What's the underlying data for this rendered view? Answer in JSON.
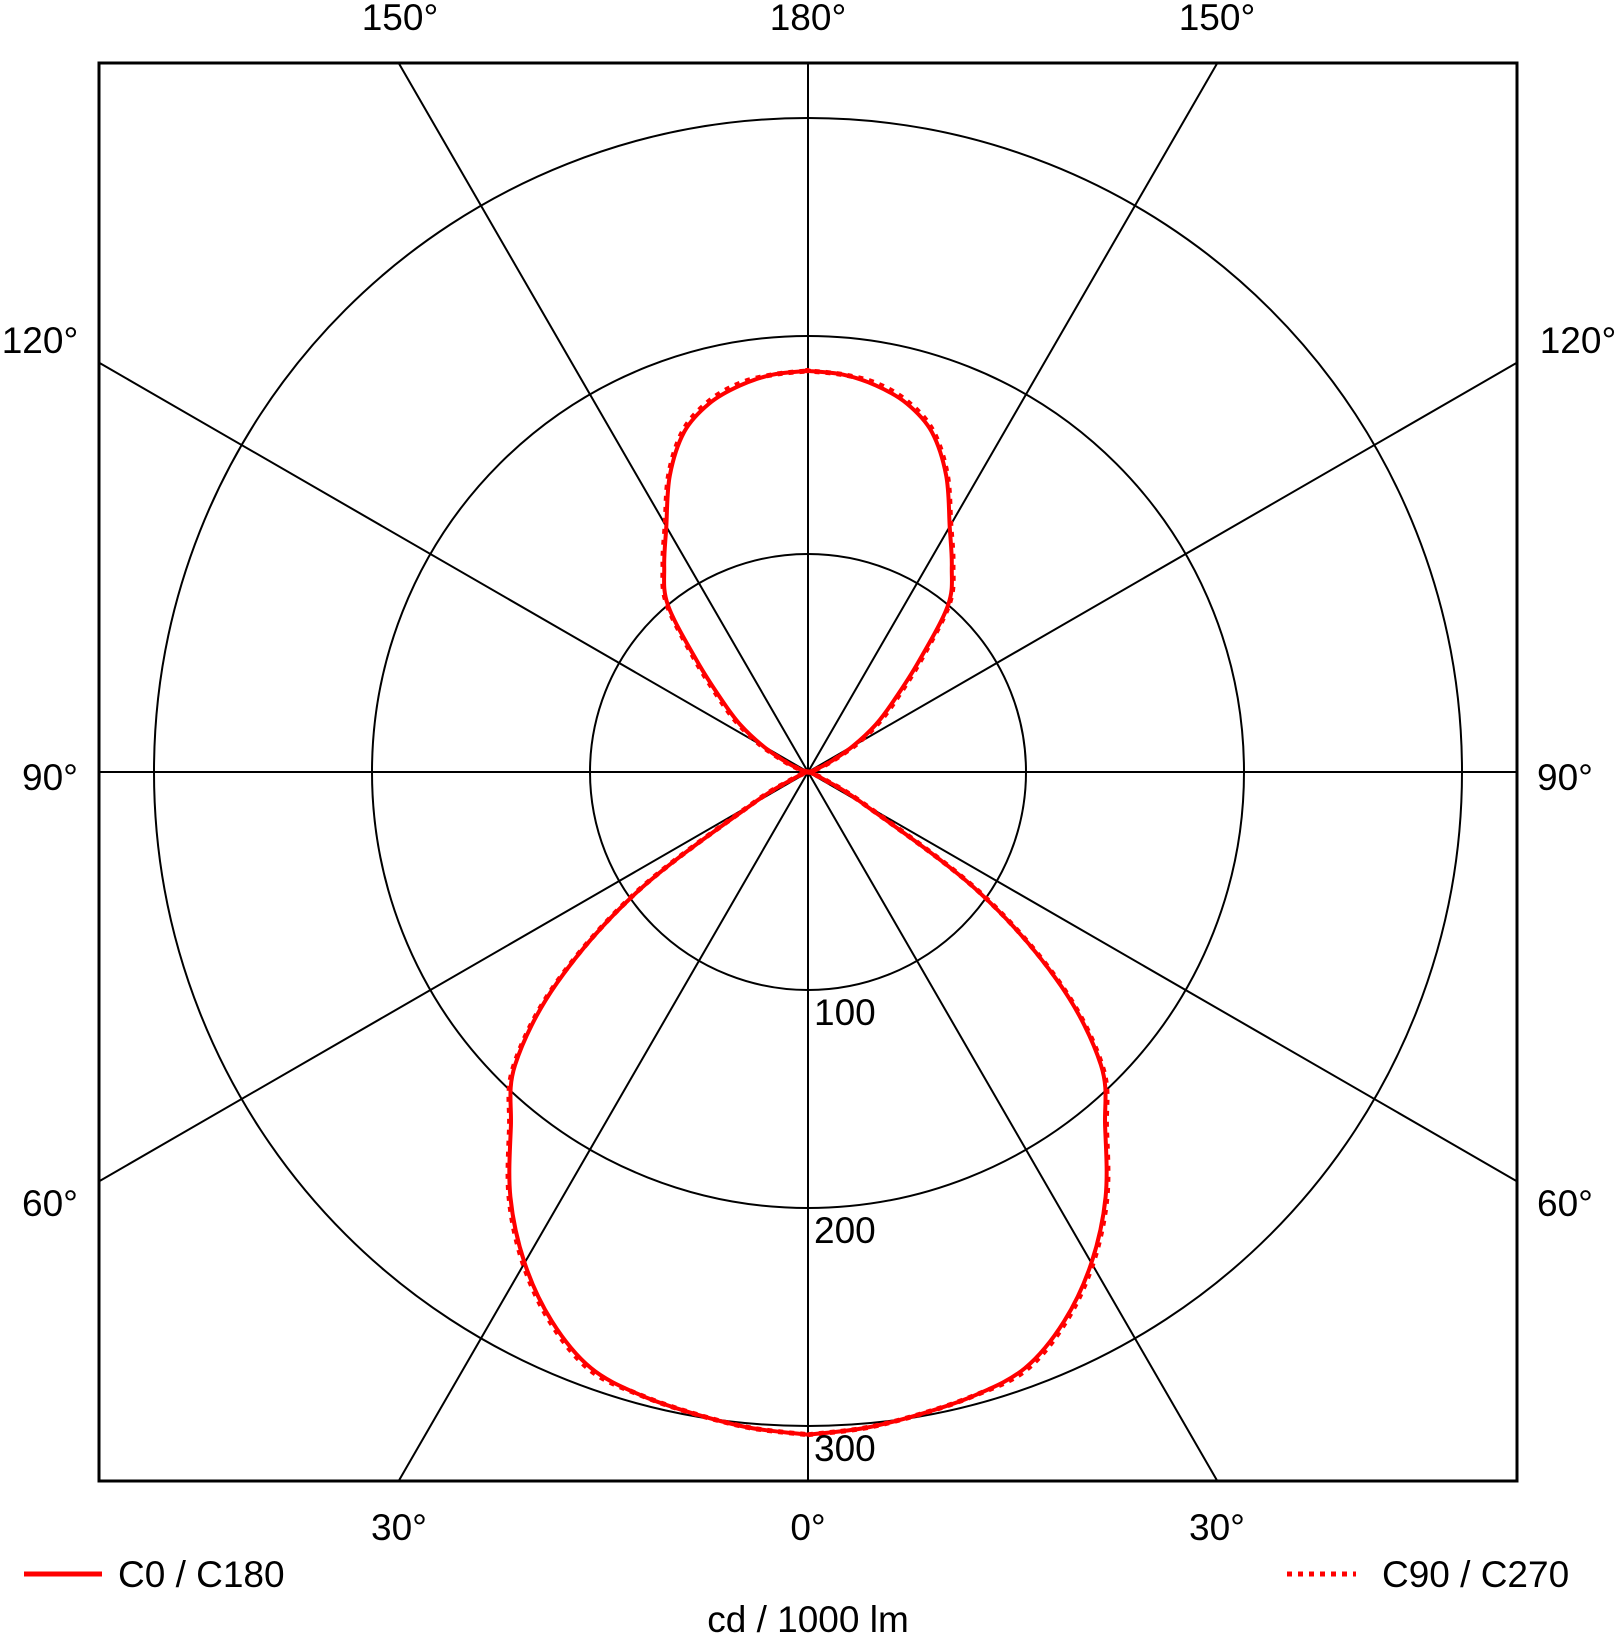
{
  "chart_data": {
    "type": "line",
    "subtype": "polar-luminous-intensity",
    "xlabel": "cd / 1000 lm",
    "radial_ticks": [
      100,
      200,
      300
    ],
    "radial_max": 300,
    "angle_labels": {
      "top": [
        "150°",
        "180°",
        "150°"
      ],
      "left": [
        "120°",
        "90°",
        "60°"
      ],
      "right": [
        "120°",
        "90°",
        "60°"
      ],
      "bottom": [
        "30°",
        "0°",
        "30°"
      ]
    },
    "grid": true,
    "legend_placement": "bottom",
    "gamma": [
      0,
      5,
      10,
      15,
      20,
      25,
      30,
      35,
      40,
      45,
      50,
      55,
      60,
      65,
      70,
      75,
      80,
      85,
      90,
      95,
      100,
      105,
      110,
      115,
      120,
      125,
      130,
      135,
      140,
      145,
      150,
      155,
      160,
      165,
      170,
      175,
      180
    ],
    "series": [
      {
        "name": "C0 / C180",
        "style": "solid",
        "color": "#ff0000",
        "values": [
          304,
          302,
          299,
          296,
          291,
          278,
          260,
          238,
          212,
          190,
          150,
          95,
          30,
          8,
          2,
          0,
          0,
          0,
          0,
          0,
          0,
          2,
          5,
          12,
          24,
          38,
          52,
          72,
          100,
          115,
          130,
          150,
          166,
          175,
          180,
          183,
          184
        ]
      },
      {
        "name": "C90 / C270",
        "style": "dotted",
        "color": "#ff0000",
        "values": [
          304,
          302,
          299,
          296,
          292,
          279,
          261,
          239,
          213,
          191,
          151,
          96,
          31,
          9,
          2,
          0,
          0,
          0,
          0,
          0,
          0,
          2,
          6,
          13,
          26,
          40,
          54,
          74,
          101,
          116,
          131,
          151,
          167,
          176,
          181,
          183,
          184
        ]
      }
    ]
  }
}
